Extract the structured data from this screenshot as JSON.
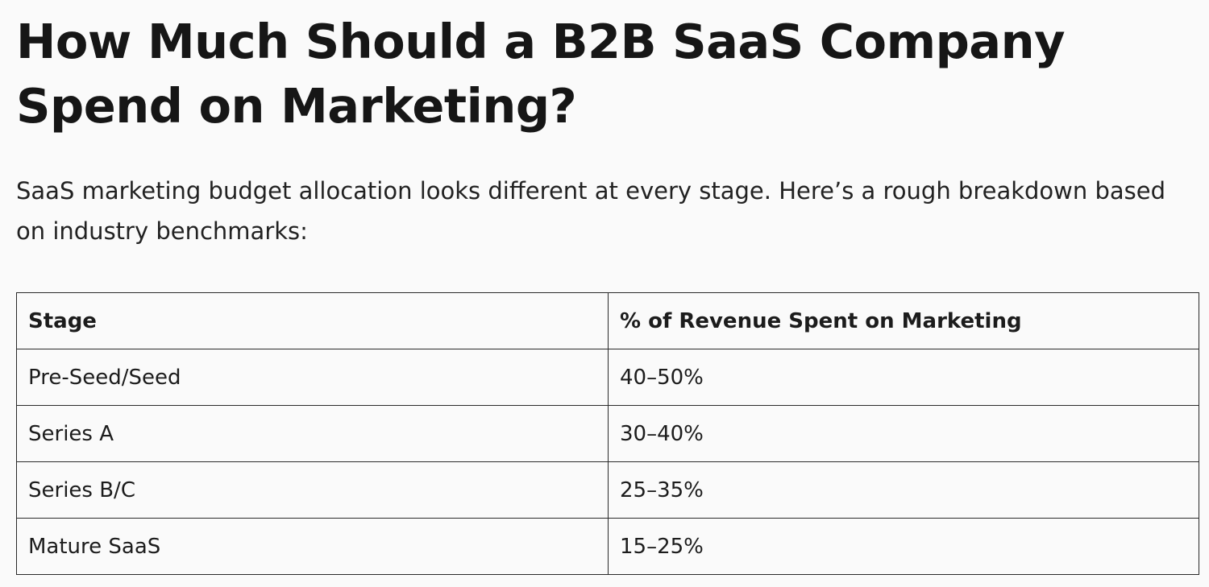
{
  "article": {
    "title": "How Much Should a B2B SaaS Company Spend on Marketing?",
    "intro": "SaaS marketing budget allocation looks different at every stage. Here’s a rough breakdown based on industry benchmarks:"
  },
  "table": {
    "headers": [
      "Stage",
      "% of Revenue Spent on Marketing"
    ],
    "rows": [
      [
        "Pre-Seed/Seed",
        "40–50%"
      ],
      [
        "Series A",
        "30–40%"
      ],
      [
        "Series B/C",
        "25–35%"
      ],
      [
        "Mature SaaS",
        "15–25%"
      ]
    ]
  }
}
